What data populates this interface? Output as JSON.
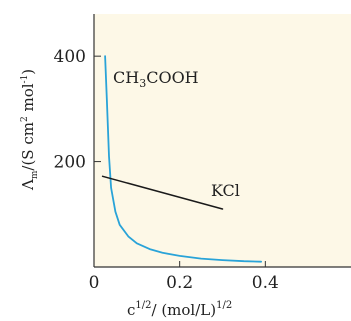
{
  "chart_data": {
    "type": "line",
    "title": "",
    "xlabel": {
      "base": "c",
      "base_sup": "1/2",
      "rest": "/ (mol/L)",
      "rest_sup": "1/2"
    },
    "ylabel": {
      "lambda": "Λ",
      "lambda_sub": "m",
      "open": "/(S cm",
      "sup1": "2",
      "mid": " mol",
      "sup2": "-1",
      "close": ")"
    },
    "xlim": [
      0,
      0.6
    ],
    "ylim": [
      0,
      480
    ],
    "x_ticks": [
      0,
      0.2,
      0.4
    ],
    "x_tick_labels": [
      "0",
      "0.2",
      "0.4"
    ],
    "y_ticks": [
      200,
      400
    ],
    "y_tick_labels": [
      "200",
      "400"
    ],
    "grid": false,
    "colors": {
      "background": "#fdf8e7",
      "acetic": "#29a3d8",
      "kcl": "#1a1a1a",
      "axis": "#333333"
    },
    "series": [
      {
        "name_parts": {
          "a": "CH",
          "sub": "3",
          "b": "COOH"
        },
        "x": [
          0.026,
          0.03,
          0.035,
          0.04,
          0.05,
          0.06,
          0.08,
          0.1,
          0.13,
          0.16,
          0.2,
          0.25,
          0.3,
          0.35,
          0.39
        ],
        "y": [
          400,
          320,
          210,
          150,
          105,
          80,
          58,
          45,
          34,
          27,
          21,
          16,
          13,
          11,
          10
        ]
      },
      {
        "name": "KCl",
        "x": [
          0.02,
          0.3
        ],
        "y": [
          172,
          110
        ]
      }
    ]
  }
}
